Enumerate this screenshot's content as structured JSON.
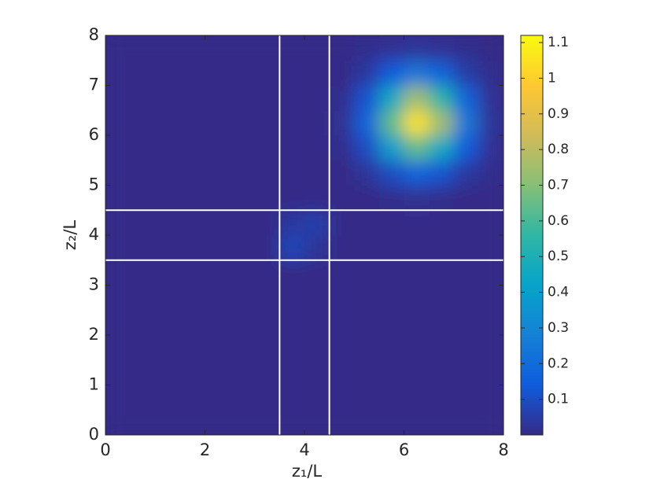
{
  "chart_data": {
    "type": "heatmap",
    "xlabel": "z₁/L",
    "ylabel": "z₂/L",
    "xlim": [
      0,
      8
    ],
    "ylim": [
      0,
      8
    ],
    "xticks": [
      0,
      2,
      4,
      6,
      8
    ],
    "yticks": [
      0,
      1,
      2,
      3,
      4,
      5,
      6,
      7,
      8
    ],
    "clim": [
      0,
      1.12
    ],
    "cticks": [
      0.1,
      0.2,
      0.3,
      0.4,
      0.5,
      0.6,
      0.7,
      0.8,
      0.9,
      1,
      1.1
    ],
    "colormap": "parula",
    "vlines": [
      3.5,
      4.5
    ],
    "hlines": [
      3.5,
      4.5
    ],
    "line_color": "#ffffff",
    "z": [
      [
        0,
        0,
        0,
        0,
        0,
        0,
        0,
        0,
        0,
        0,
        0,
        0,
        0,
        0,
        0,
        0
      ],
      [
        0,
        0,
        0,
        0,
        0,
        0,
        0,
        0,
        0,
        0,
        0,
        0,
        0,
        0,
        0,
        0
      ],
      [
        0,
        0,
        0,
        0,
        0,
        0,
        0,
        0,
        0,
        0,
        0,
        0,
        0,
        0,
        0,
        0
      ],
      [
        0,
        0,
        0,
        0,
        0,
        0,
        0,
        0,
        0,
        0,
        0,
        0,
        0,
        0,
        0,
        0
      ],
      [
        0,
        0,
        0,
        0,
        0,
        0,
        0,
        0,
        0,
        0,
        0,
        0,
        0,
        0,
        0,
        0
      ],
      [
        0,
        0,
        0,
        0,
        0,
        0,
        0,
        0,
        0,
        0,
        0,
        0,
        0,
        0,
        0,
        0
      ],
      [
        0,
        0,
        0,
        0,
        0,
        0,
        0,
        0,
        0,
        0,
        0,
        0,
        0,
        0,
        0,
        0
      ],
      [
        0,
        0,
        0,
        0,
        0,
        0,
        0,
        0.08,
        0.03,
        0,
        0,
        0,
        0,
        0,
        0,
        0
      ],
      [
        0,
        0,
        0,
        0,
        0,
        0,
        0,
        0.04,
        0.06,
        0,
        0,
        0,
        0,
        0,
        0,
        0
      ],
      [
        0,
        0,
        0,
        0,
        0,
        0,
        0,
        0,
        0,
        0,
        0,
        0.01,
        0.02,
        0.01,
        0,
        0
      ],
      [
        0,
        0,
        0,
        0,
        0,
        0,
        0,
        0,
        0,
        0,
        0.03,
        0.1,
        0.17,
        0.12,
        0.04,
        0.01
      ],
      [
        0,
        0,
        0,
        0,
        0,
        0,
        0,
        0,
        0,
        0.01,
        0.1,
        0.39,
        0.64,
        0.45,
        0.14,
        0.02
      ],
      [
        0,
        0,
        0,
        0,
        0,
        0,
        0,
        0,
        0,
        0.02,
        0.17,
        0.64,
        1.05,
        0.75,
        0.24,
        0.03
      ],
      [
        0,
        0,
        0,
        0,
        0,
        0,
        0,
        0,
        0,
        0.01,
        0.12,
        0.45,
        0.75,
        0.54,
        0.17,
        0.02
      ],
      [
        0,
        0,
        0,
        0,
        0,
        0,
        0,
        0,
        0,
        0,
        0.04,
        0.14,
        0.24,
        0.17,
        0.05,
        0.01
      ],
      [
        0,
        0,
        0,
        0,
        0,
        0,
        0,
        0,
        0,
        0,
        0.01,
        0.02,
        0.03,
        0.02,
        0.01,
        0
      ]
    ]
  }
}
